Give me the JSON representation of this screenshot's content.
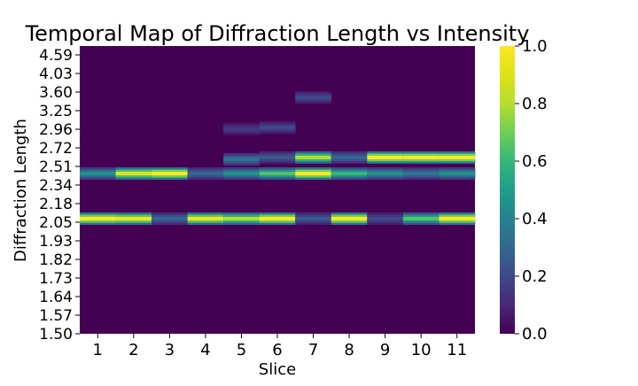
{
  "chart_data": {
    "type": "heatmap",
    "title": "Temporal Map of Diffraction Length vs Intensity",
    "xlabel": "Slice",
    "ylabel": "Diffraction Length",
    "x_categories": [
      "1",
      "2",
      "3",
      "4",
      "5",
      "6",
      "7",
      "8",
      "9",
      "10",
      "11"
    ],
    "y_tick_labels": [
      "4.59",
      "4.03",
      "3.60",
      "3.25",
      "2.96",
      "2.72",
      "2.51",
      "2.34",
      "2.18",
      "2.05",
      "1.93",
      "1.82",
      "1.73",
      "1.64",
      "1.57",
      "1.50"
    ],
    "y_range": [
      1.5,
      4.59
    ],
    "colormap": "viridis",
    "colorbar": {
      "range": [
        0.0,
        1.0
      ],
      "ticks": [
        "0.0",
        "0.2",
        "0.4",
        "0.6",
        "0.8",
        "1.0"
      ]
    },
    "series": [
      {
        "slice": "1",
        "peaks": [
          {
            "d": 2.05,
            "intensity": 1.0
          },
          {
            "d": 2.4,
            "intensity": 0.45
          }
        ]
      },
      {
        "slice": "2",
        "peaks": [
          {
            "d": 2.05,
            "intensity": 0.95
          },
          {
            "d": 2.4,
            "intensity": 0.9
          }
        ]
      },
      {
        "slice": "3",
        "peaks": [
          {
            "d": 2.05,
            "intensity": 0.3
          },
          {
            "d": 2.4,
            "intensity": 1.0
          }
        ]
      },
      {
        "slice": "4",
        "peaks": [
          {
            "d": 2.05,
            "intensity": 0.95
          },
          {
            "d": 2.4,
            "intensity": 0.3
          }
        ]
      },
      {
        "slice": "5",
        "peaks": [
          {
            "d": 2.05,
            "intensity": 0.8
          },
          {
            "d": 2.4,
            "intensity": 0.45
          },
          {
            "d": 2.53,
            "intensity": 0.35
          },
          {
            "d": 2.88,
            "intensity": 0.15
          }
        ]
      },
      {
        "slice": "6",
        "peaks": [
          {
            "d": 2.05,
            "intensity": 1.0
          },
          {
            "d": 2.4,
            "intensity": 0.65
          },
          {
            "d": 2.55,
            "intensity": 0.25
          },
          {
            "d": 2.9,
            "intensity": 0.2
          }
        ]
      },
      {
        "slice": "7",
        "peaks": [
          {
            "d": 2.05,
            "intensity": 0.25
          },
          {
            "d": 2.4,
            "intensity": 1.0
          },
          {
            "d": 2.55,
            "intensity": 0.8
          },
          {
            "d": 3.36,
            "intensity": 0.2
          }
        ]
      },
      {
        "slice": "8",
        "peaks": [
          {
            "d": 2.05,
            "intensity": 1.0
          },
          {
            "d": 2.4,
            "intensity": 0.6
          },
          {
            "d": 2.55,
            "intensity": 0.3
          }
        ]
      },
      {
        "slice": "9",
        "peaks": [
          {
            "d": 2.05,
            "intensity": 0.2
          },
          {
            "d": 2.4,
            "intensity": 0.45
          },
          {
            "d": 2.55,
            "intensity": 1.0
          }
        ]
      },
      {
        "slice": "10",
        "peaks": [
          {
            "d": 2.05,
            "intensity": 0.65
          },
          {
            "d": 2.4,
            "intensity": 0.35
          },
          {
            "d": 2.55,
            "intensity": 1.0
          }
        ]
      },
      {
        "slice": "11",
        "peaks": [
          {
            "d": 2.05,
            "intensity": 1.0
          },
          {
            "d": 2.4,
            "intensity": 0.45
          },
          {
            "d": 2.55,
            "intensity": 1.0
          }
        ]
      }
    ]
  }
}
